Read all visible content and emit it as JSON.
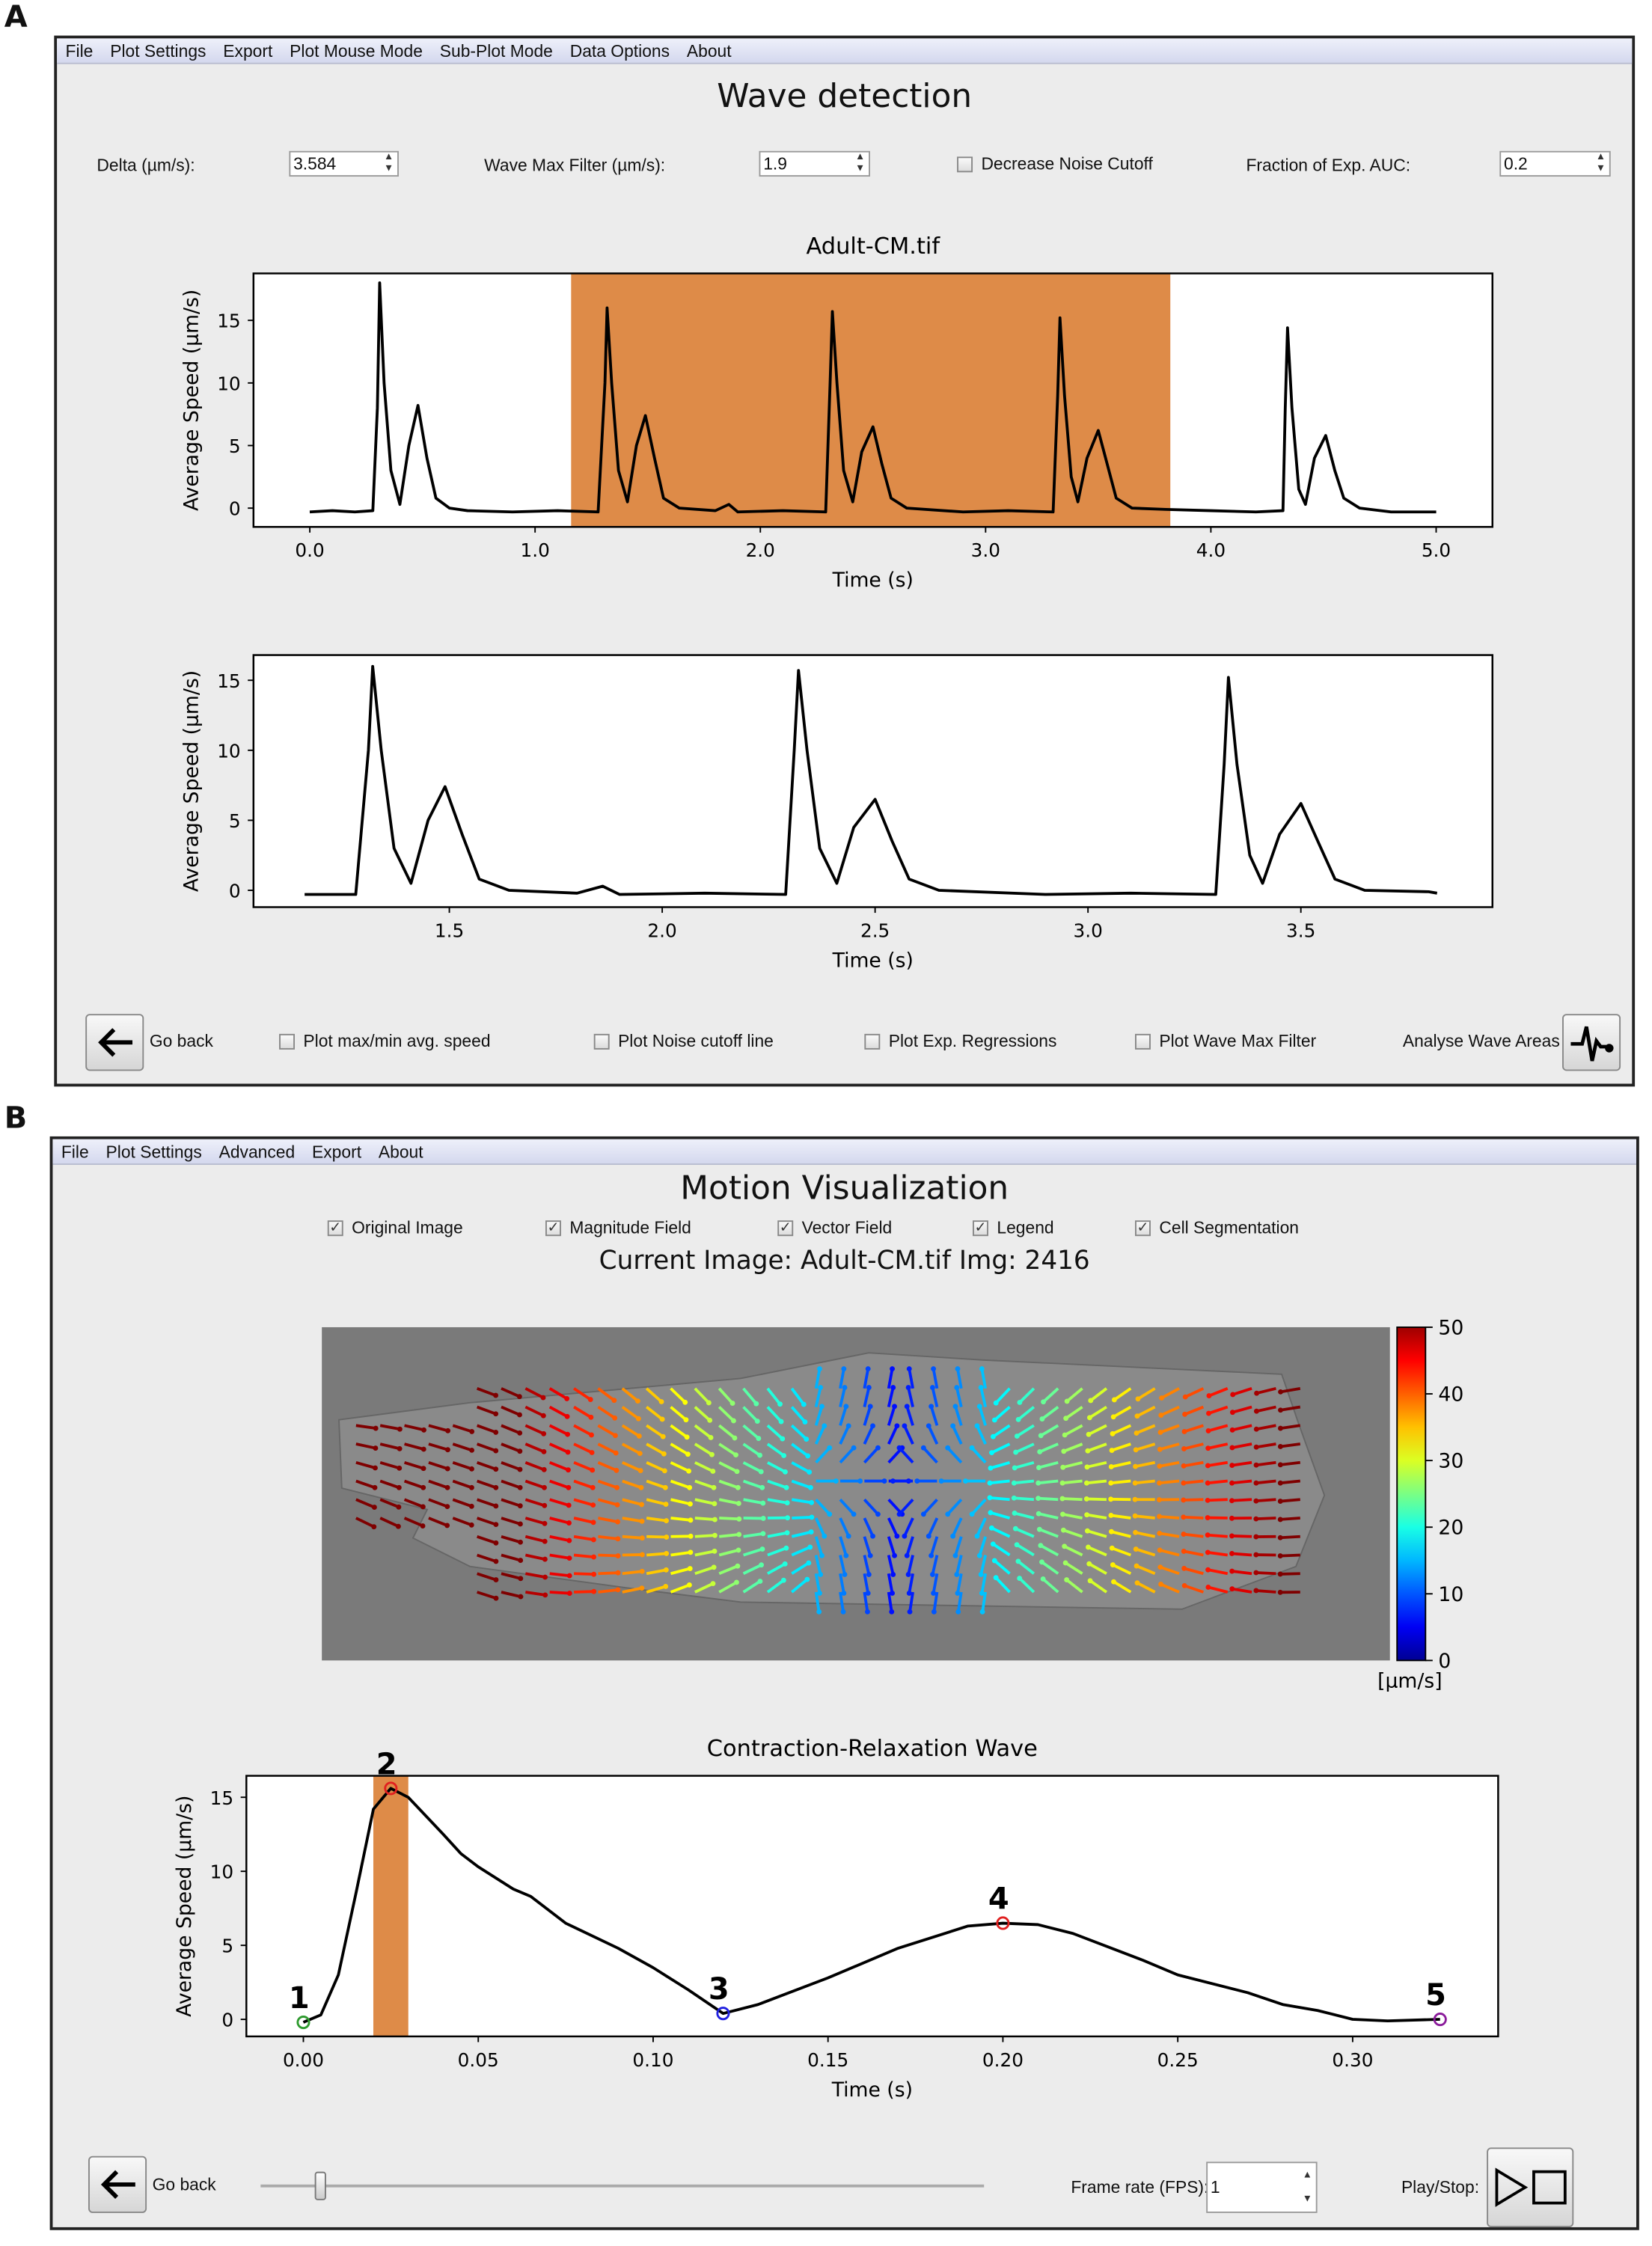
{
  "panel_a": {
    "label": "A",
    "menu": [
      "File",
      "Plot Settings",
      "Export",
      "Plot Mouse Mode",
      "Sub-Plot Mode",
      "Data Options",
      "About"
    ],
    "title": "Wave detection",
    "controls": {
      "delta_label": "Delta (µm/s):",
      "delta_value": "3.584",
      "wave_max_label": "Wave Max Filter (µm/s):",
      "wave_max_value": "1.9",
      "decrease_noise_label": "Decrease Noise Cutoff",
      "decrease_noise_checked": false,
      "fraction_label": "Fraction of Exp. AUC:",
      "fraction_value": "0.2"
    },
    "bottom": {
      "go_back": "Go back",
      "checkboxes": [
        {
          "label": "Plot max/min avg. speed",
          "checked": false
        },
        {
          "label": "Plot Noise cutoff line",
          "checked": false
        },
        {
          "label": "Plot Exp. Regressions",
          "checked": false
        },
        {
          "label": "Plot Wave Max Filter",
          "checked": false
        }
      ],
      "analyse": "Analyse Wave Areas"
    }
  },
  "panel_b": {
    "label": "B",
    "menu": [
      "File",
      "Plot Settings",
      "Advanced",
      "Export",
      "About"
    ],
    "title": "Motion Visualization",
    "checkboxes": [
      {
        "label": "Original Image",
        "checked": true
      },
      {
        "label": "Magnitude Field",
        "checked": true
      },
      {
        "label": "Vector Field",
        "checked": true
      },
      {
        "label": "Legend",
        "checked": true
      },
      {
        "label": "Cell Segmentation",
        "checked": true
      }
    ],
    "current_image": "Current Image: Adult-CM.tif Img: 2416",
    "colorbar": {
      "ticks": [
        "50",
        "40",
        "30",
        "20",
        "10",
        "0"
      ],
      "unit": "[µm/s]",
      "colormap": "jet",
      "range": [
        0,
        50
      ]
    },
    "bottom": {
      "go_back": "Go back",
      "slider_fraction": 0.08,
      "frame_rate_label": "Frame rate (FPS):",
      "frame_rate_value": "1",
      "play_label": "Play/Stop:"
    }
  },
  "colors": {
    "highlight": "#de8b48",
    "line": "#000000",
    "marker_1": "#2e9a2e",
    "marker_2": "#e02020",
    "marker_3": "#2020e0",
    "marker_4": "#e02020",
    "marker_5": "#8a1a9a"
  },
  "chart_data": [
    {
      "type": "line",
      "title": "Adult-CM.tif",
      "xlabel": "Time (s)",
      "ylabel": "Average Speed (µm/s)",
      "xlim": [
        -0.25,
        5.25
      ],
      "ylim": [
        -1.5,
        18.75
      ],
      "xticks": [
        "0.0",
        "1.0",
        "2.0",
        "3.0",
        "4.0",
        "5.0"
      ],
      "yticks": [
        "0",
        "5",
        "10",
        "15"
      ],
      "highlight": [
        1.16,
        3.82
      ],
      "points": [
        [
          0,
          -0.3
        ],
        [
          0.1,
          -0.2
        ],
        [
          0.2,
          -0.3
        ],
        [
          0.28,
          -0.2
        ],
        [
          0.3,
          8
        ],
        [
          0.31,
          18
        ],
        [
          0.33,
          10
        ],
        [
          0.36,
          3
        ],
        [
          0.4,
          0.3
        ],
        [
          0.44,
          5
        ],
        [
          0.48,
          8.2
        ],
        [
          0.52,
          4
        ],
        [
          0.56,
          0.8
        ],
        [
          0.62,
          0
        ],
        [
          0.7,
          -0.2
        ],
        [
          0.9,
          -0.3
        ],
        [
          1.1,
          -0.2
        ],
        [
          1.28,
          -0.3
        ],
        [
          1.31,
          10
        ],
        [
          1.32,
          16
        ],
        [
          1.34,
          10
        ],
        [
          1.37,
          3
        ],
        [
          1.41,
          0.5
        ],
        [
          1.45,
          5
        ],
        [
          1.49,
          7.4
        ],
        [
          1.53,
          4
        ],
        [
          1.57,
          0.8
        ],
        [
          1.64,
          0
        ],
        [
          1.8,
          -0.2
        ],
        [
          1.86,
          0.3
        ],
        [
          1.9,
          -0.3
        ],
        [
          2.1,
          -0.2
        ],
        [
          2.29,
          -0.3
        ],
        [
          2.31,
          10
        ],
        [
          2.32,
          15.7
        ],
        [
          2.34,
          10
        ],
        [
          2.37,
          3
        ],
        [
          2.41,
          0.5
        ],
        [
          2.45,
          4.5
        ],
        [
          2.5,
          6.5
        ],
        [
          2.54,
          3.5
        ],
        [
          2.58,
          0.8
        ],
        [
          2.65,
          0
        ],
        [
          2.9,
          -0.3
        ],
        [
          3.1,
          -0.2
        ],
        [
          3.3,
          -0.3
        ],
        [
          3.32,
          9
        ],
        [
          3.33,
          15.2
        ],
        [
          3.35,
          9
        ],
        [
          3.38,
          2.5
        ],
        [
          3.41,
          0.5
        ],
        [
          3.45,
          4
        ],
        [
          3.5,
          6.2
        ],
        [
          3.54,
          3.5
        ],
        [
          3.58,
          0.8
        ],
        [
          3.65,
          0
        ],
        [
          3.8,
          -0.1
        ],
        [
          4.0,
          -0.2
        ],
        [
          4.2,
          -0.3
        ],
        [
          4.32,
          -0.2
        ],
        [
          4.33,
          8
        ],
        [
          4.34,
          14.4
        ],
        [
          4.36,
          8
        ],
        [
          4.39,
          1.5
        ],
        [
          4.42,
          0.3
        ],
        [
          4.46,
          4
        ],
        [
          4.51,
          5.8
        ],
        [
          4.55,
          3
        ],
        [
          4.59,
          0.8
        ],
        [
          4.66,
          0
        ],
        [
          4.8,
          -0.3
        ],
        [
          5.0,
          -0.3
        ]
      ]
    },
    {
      "type": "line",
      "xlabel": "Time (s)",
      "ylabel": "Average Speed (µm/s)",
      "xlim": [
        1.04,
        3.95
      ],
      "ylim": [
        -1.2,
        16.8
      ],
      "xticks": [
        "1.5",
        "2.0",
        "2.5",
        "3.0",
        "3.5"
      ],
      "yticks": [
        "0",
        "5",
        "10",
        "15"
      ],
      "points": [
        [
          1.16,
          -0.3
        ],
        [
          1.28,
          -0.3
        ],
        [
          1.31,
          10
        ],
        [
          1.32,
          16
        ],
        [
          1.34,
          10
        ],
        [
          1.37,
          3
        ],
        [
          1.41,
          0.5
        ],
        [
          1.45,
          5
        ],
        [
          1.49,
          7.4
        ],
        [
          1.53,
          4
        ],
        [
          1.57,
          0.8
        ],
        [
          1.64,
          0
        ],
        [
          1.8,
          -0.2
        ],
        [
          1.86,
          0.3
        ],
        [
          1.9,
          -0.3
        ],
        [
          2.1,
          -0.2
        ],
        [
          2.29,
          -0.3
        ],
        [
          2.31,
          10
        ],
        [
          2.32,
          15.7
        ],
        [
          2.34,
          10
        ],
        [
          2.37,
          3
        ],
        [
          2.41,
          0.5
        ],
        [
          2.45,
          4.5
        ],
        [
          2.5,
          6.5
        ],
        [
          2.54,
          3.5
        ],
        [
          2.58,
          0.8
        ],
        [
          2.65,
          0
        ],
        [
          2.9,
          -0.3
        ],
        [
          3.1,
          -0.2
        ],
        [
          3.3,
          -0.3
        ],
        [
          3.32,
          9
        ],
        [
          3.33,
          15.2
        ],
        [
          3.35,
          9
        ],
        [
          3.38,
          2.5
        ],
        [
          3.41,
          0.5
        ],
        [
          3.45,
          4
        ],
        [
          3.5,
          6.2
        ],
        [
          3.54,
          3.5
        ],
        [
          3.58,
          0.8
        ],
        [
          3.65,
          0
        ],
        [
          3.8,
          -0.1
        ],
        [
          3.82,
          -0.2
        ]
      ]
    },
    {
      "type": "line",
      "title": "Contraction-Relaxation Wave",
      "xlabel": "Time (s)",
      "ylabel": "Average Speed (µm/s)",
      "xlim": [
        -0.0163,
        0.3416
      ],
      "ylim": [
        -1.15,
        16.45
      ],
      "xticks": [
        "0.00",
        "0.05",
        "0.10",
        "0.15",
        "0.20",
        "0.25",
        "0.30"
      ],
      "yticks": [
        "0",
        "5",
        "10",
        "15"
      ],
      "highlight": [
        0.02,
        0.03
      ],
      "points": [
        [
          0,
          -0.2
        ],
        [
          0.005,
          0.3
        ],
        [
          0.01,
          3
        ],
        [
          0.015,
          8.5
        ],
        [
          0.02,
          14.2
        ],
        [
          0.025,
          15.6
        ],
        [
          0.03,
          15
        ],
        [
          0.04,
          12.5
        ],
        [
          0.045,
          11.2
        ],
        [
          0.05,
          10.3
        ],
        [
          0.06,
          8.8
        ],
        [
          0.065,
          8.3
        ],
        [
          0.075,
          6.5
        ],
        [
          0.09,
          4.8
        ],
        [
          0.1,
          3.5
        ],
        [
          0.11,
          2
        ],
        [
          0.12,
          0.4
        ],
        [
          0.13,
          1
        ],
        [
          0.15,
          2.8
        ],
        [
          0.17,
          4.8
        ],
        [
          0.19,
          6.3
        ],
        [
          0.2,
          6.5
        ],
        [
          0.21,
          6.4
        ],
        [
          0.22,
          5.8
        ],
        [
          0.24,
          4
        ],
        [
          0.25,
          3
        ],
        [
          0.27,
          1.8
        ],
        [
          0.28,
          1
        ],
        [
          0.29,
          0.6
        ],
        [
          0.3,
          0
        ],
        [
          0.31,
          -0.1
        ],
        [
          0.325,
          0
        ]
      ],
      "markers": [
        {
          "label": "1",
          "x": 0,
          "y": -0.2,
          "color": "#2e9a2e"
        },
        {
          "label": "2",
          "x": 0.025,
          "y": 15.6,
          "color": "#e02020"
        },
        {
          "label": "3",
          "x": 0.12,
          "y": 0.4,
          "color": "#2020e0"
        },
        {
          "label": "4",
          "x": 0.2,
          "y": 6.5,
          "color": "#e02020"
        },
        {
          "label": "5",
          "x": 0.325,
          "y": 0,
          "color": "#8a1a9a"
        }
      ]
    }
  ]
}
